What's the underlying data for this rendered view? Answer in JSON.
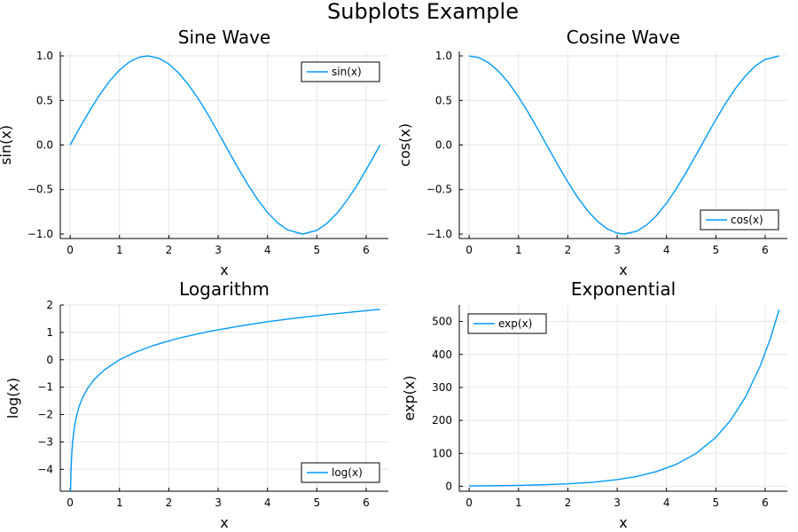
{
  "suptitle": "Subplots Example",
  "chart_data": [
    {
      "type": "line",
      "title": "Sine Wave",
      "xlabel": "x",
      "ylabel": "sin(x)",
      "xlim": [
        -0.2,
        6.45
      ],
      "ylim": [
        -1.05,
        1.05
      ],
      "xticks": [
        0,
        1,
        2,
        3,
        4,
        5,
        6
      ],
      "xtick_labels": [
        "0",
        "1",
        "2",
        "3",
        "4",
        "5",
        "6"
      ],
      "yticks": [
        -1.0,
        -0.5,
        0.0,
        0.5,
        1.0
      ],
      "ytick_labels": [
        "−1.0",
        "−0.5",
        "0.0",
        "0.5",
        "1.0"
      ],
      "grid": true,
      "legend": "top-right",
      "color": "#009AFA",
      "series": [
        {
          "name": "sin(x)",
          "x": [
            0,
            0.2,
            0.4,
            0.6,
            0.8,
            1.0,
            1.2,
            1.4,
            1.5708,
            1.8,
            2.0,
            2.2,
            2.4,
            2.6,
            2.8,
            3.0,
            3.1416,
            3.4,
            3.6,
            3.8,
            4.0,
            4.2,
            4.4,
            4.7124,
            5.0,
            5.2,
            5.4,
            5.6,
            5.8,
            6.0,
            6.2832
          ],
          "y": [
            0,
            0.199,
            0.389,
            0.565,
            0.717,
            0.841,
            0.932,
            0.985,
            1.0,
            0.974,
            0.909,
            0.808,
            0.675,
            0.516,
            0.335,
            0.141,
            0.0,
            -0.256,
            -0.443,
            -0.612,
            -0.757,
            -0.872,
            -0.952,
            -1.0,
            -0.959,
            -0.883,
            -0.773,
            -0.631,
            -0.465,
            -0.279,
            0.0
          ]
        }
      ]
    },
    {
      "type": "line",
      "title": "Cosine Wave",
      "xlabel": "x",
      "ylabel": "cos(x)",
      "xlim": [
        -0.2,
        6.45
      ],
      "ylim": [
        -1.05,
        1.05
      ],
      "xticks": [
        0,
        1,
        2,
        3,
        4,
        5,
        6
      ],
      "xtick_labels": [
        "0",
        "1",
        "2",
        "3",
        "4",
        "5",
        "6"
      ],
      "yticks": [
        -1.0,
        -0.5,
        0.0,
        0.5,
        1.0
      ],
      "ytick_labels": [
        "−1.0",
        "−0.5",
        "0.0",
        "0.5",
        "1.0"
      ],
      "grid": true,
      "legend": "bottom-right",
      "color": "#009AFA",
      "series": [
        {
          "name": "cos(x)",
          "x": [
            0,
            0.2,
            0.4,
            0.6,
            0.8,
            1.0,
            1.2,
            1.4,
            1.5708,
            1.8,
            2.0,
            2.2,
            2.4,
            2.6,
            2.8,
            3.0,
            3.1416,
            3.4,
            3.6,
            3.8,
            4.0,
            4.2,
            4.4,
            4.7124,
            5.0,
            5.2,
            5.4,
            5.6,
            5.8,
            6.0,
            6.2832
          ],
          "y": [
            1.0,
            0.98,
            0.921,
            0.825,
            0.697,
            0.54,
            0.362,
            0.17,
            0.0,
            -0.227,
            -0.416,
            -0.589,
            -0.737,
            -0.857,
            -0.942,
            -0.99,
            -1.0,
            -0.967,
            -0.897,
            -0.791,
            -0.654,
            -0.49,
            -0.307,
            0.0,
            0.284,
            0.469,
            0.635,
            0.776,
            0.886,
            0.96,
            1.0
          ]
        }
      ]
    },
    {
      "type": "line",
      "title": "Logarithm",
      "xlabel": "x",
      "ylabel": "log(x)",
      "xlim": [
        -0.2,
        6.45
      ],
      "ylim": [
        -4.8,
        2.0
      ],
      "xticks": [
        0,
        1,
        2,
        3,
        4,
        5,
        6
      ],
      "xtick_labels": [
        "0",
        "1",
        "2",
        "3",
        "4",
        "5",
        "6"
      ],
      "yticks": [
        -4,
        -3,
        -2,
        -1,
        0,
        1,
        2
      ],
      "ytick_labels": [
        "−4",
        "−3",
        "−2",
        "−1",
        "0",
        "1",
        "2"
      ],
      "grid": true,
      "legend": "bottom-right",
      "color": "#009AFA",
      "series": [
        {
          "name": "log(x)",
          "x": [
            0.008,
            0.012,
            0.02,
            0.035,
            0.05,
            0.08,
            0.12,
            0.18,
            0.25,
            0.35,
            0.5,
            0.7,
            1.0,
            1.3,
            1.7,
            2.2,
            2.8,
            3.4,
            4.0,
            4.6,
            5.2,
            5.8,
            6.2832
          ],
          "y": [
            -4.83,
            -4.42,
            -3.91,
            -3.35,
            -3.0,
            -2.53,
            -2.12,
            -1.71,
            -1.39,
            -1.05,
            -0.69,
            -0.36,
            0.0,
            0.26,
            0.53,
            0.79,
            1.03,
            1.22,
            1.39,
            1.53,
            1.65,
            1.76,
            1.84
          ]
        }
      ]
    },
    {
      "type": "line",
      "title": "Exponential",
      "xlabel": "x",
      "ylabel": "exp(x)",
      "xlim": [
        -0.2,
        6.45
      ],
      "ylim": [
        -15,
        550
      ],
      "xticks": [
        0,
        1,
        2,
        3,
        4,
        5,
        6
      ],
      "xtick_labels": [
        "0",
        "1",
        "2",
        "3",
        "4",
        "5",
        "6"
      ],
      "yticks": [
        0,
        100,
        200,
        300,
        400,
        500
      ],
      "ytick_labels": [
        "0",
        "100",
        "200",
        "300",
        "400",
        "500"
      ],
      "grid": true,
      "legend": "top-left",
      "color": "#009AFA",
      "series": [
        {
          "name": "exp(x)",
          "x": [
            0,
            0.5,
            1.0,
            1.5,
            2.0,
            2.5,
            3.0,
            3.4,
            3.8,
            4.2,
            4.6,
            5.0,
            5.3,
            5.6,
            5.9,
            6.1,
            6.2832
          ],
          "y": [
            1.0,
            1.65,
            2.72,
            4.48,
            7.39,
            12.18,
            20.09,
            29.96,
            44.7,
            66.69,
            99.48,
            148.41,
            200.34,
            270.43,
            365.04,
            445.86,
            535.49
          ]
        }
      ]
    }
  ]
}
